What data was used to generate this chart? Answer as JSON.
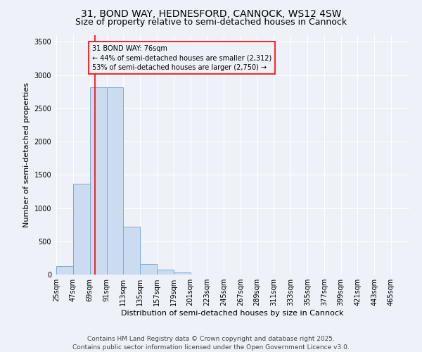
{
  "title": "31, BOND WAY, HEDNESFORD, CANNOCK, WS12 4SW",
  "subtitle": "Size of property relative to semi-detached houses in Cannock",
  "xlabel": "Distribution of semi-detached houses by size in Cannock",
  "ylabel": "Number of semi-detached properties",
  "bin_labels": [
    "25sqm",
    "47sqm",
    "69sqm",
    "91sqm",
    "113sqm",
    "135sqm",
    "157sqm",
    "179sqm",
    "201sqm",
    "223sqm",
    "245sqm",
    "267sqm",
    "289sqm",
    "311sqm",
    "333sqm",
    "355sqm",
    "377sqm",
    "399sqm",
    "421sqm",
    "443sqm",
    "465sqm"
  ],
  "bin_edges": [
    25,
    47,
    69,
    91,
    113,
    135,
    157,
    179,
    201,
    223,
    245,
    267,
    289,
    311,
    333,
    355,
    377,
    399,
    421,
    443,
    465
  ],
  "bar_heights": [
    130,
    1370,
    2820,
    2820,
    720,
    155,
    75,
    30,
    0,
    0,
    0,
    0,
    0,
    0,
    0,
    0,
    0,
    0,
    0,
    0
  ],
  "bar_color": "#ccdcf0",
  "bar_edge_color": "#7aabd4",
  "red_line_x": 76,
  "ylim": [
    0,
    3600
  ],
  "yticks": [
    0,
    500,
    1000,
    1500,
    2000,
    2500,
    3000,
    3500
  ],
  "annotation_text": "31 BOND WAY: 76sqm\n← 44% of semi-detached houses are smaller (2,312)\n53% of semi-detached houses are larger (2,750) →",
  "footer_line1": "Contains HM Land Registry data © Crown copyright and database right 2025.",
  "footer_line2": "Contains public sector information licensed under the Open Government Licence v3.0.",
  "background_color": "#eef2f8",
  "grid_color": "#ffffff",
  "title_fontsize": 10,
  "subtitle_fontsize": 9,
  "axis_label_fontsize": 8,
  "tick_fontsize": 7,
  "footer_fontsize": 6.5,
  "annotation_fontsize": 7
}
